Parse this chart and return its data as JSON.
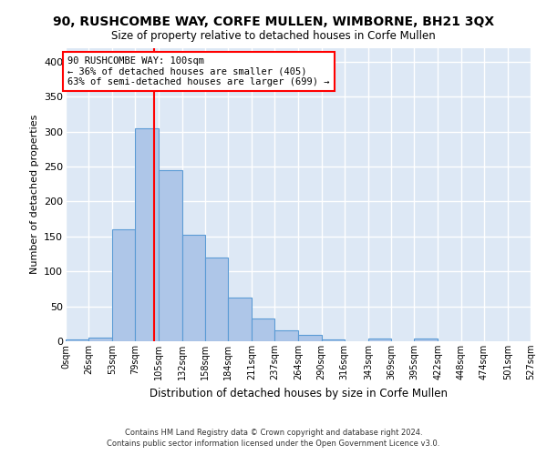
{
  "title": "90, RUSHCOMBE WAY, CORFE MULLEN, WIMBORNE, BH21 3QX",
  "subtitle": "Size of property relative to detached houses in Corfe Mullen",
  "xlabel": "Distribution of detached houses by size in Corfe Mullen",
  "ylabel": "Number of detached properties",
  "footer_line1": "Contains HM Land Registry data © Crown copyright and database right 2024.",
  "footer_line2": "Contains public sector information licensed under the Open Government Licence v3.0.",
  "annotation_line1": "90 RUSHCOMBE WAY: 100sqm",
  "annotation_line2": "← 36% of detached houses are smaller (405)",
  "annotation_line3": "63% of semi-detached houses are larger (699) →",
  "bar_values": [
    2,
    5,
    160,
    305,
    245,
    153,
    120,
    62,
    32,
    16,
    9,
    3,
    0,
    4,
    0,
    4,
    0,
    0,
    0,
    0
  ],
  "bin_edges": [
    0,
    26,
    53,
    79,
    105,
    132,
    158,
    184,
    211,
    237,
    264,
    290,
    316,
    343,
    369,
    395,
    422,
    448,
    474,
    501,
    527
  ],
  "tick_labels": [
    "0sqm",
    "26sqm",
    "53sqm",
    "79sqm",
    "105sqm",
    "132sqm",
    "158sqm",
    "184sqm",
    "211sqm",
    "237sqm",
    "264sqm",
    "290sqm",
    "316sqm",
    "343sqm",
    "369sqm",
    "395sqm",
    "422sqm",
    "448sqm",
    "474sqm",
    "501sqm",
    "527sqm"
  ],
  "property_size": 100,
  "bar_color": "#aec6e8",
  "bar_edge_color": "#5b9bd5",
  "red_line_color": "#ff0000",
  "annotation_box_color": "#ff0000",
  "bg_color": "#dde8f5",
  "grid_color": "#ffffff",
  "ylim": [
    0,
    420
  ],
  "yticks": [
    0,
    50,
    100,
    150,
    200,
    250,
    300,
    350,
    400
  ]
}
